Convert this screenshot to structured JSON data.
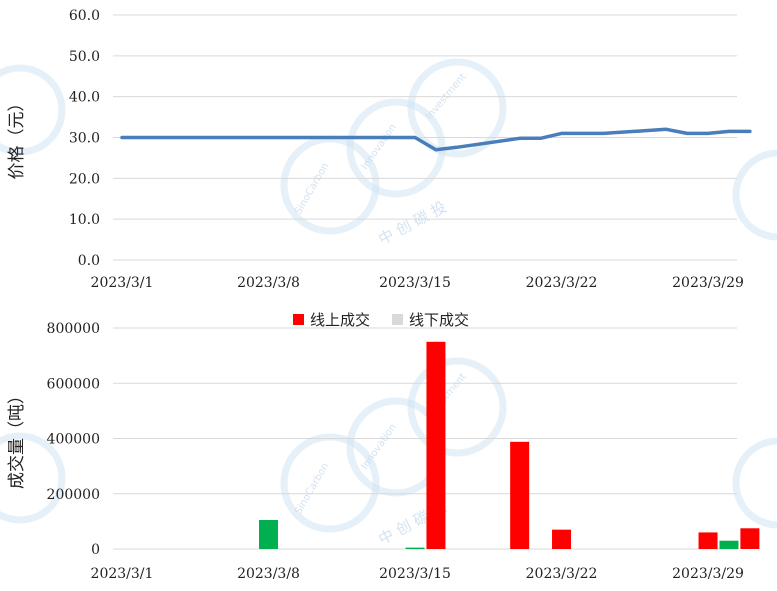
{
  "chart_data": [
    {
      "type": "line",
      "ylabel": "价格（元）",
      "ylim": [
        0,
        60
      ],
      "yticks": [
        "0.0",
        "10.0",
        "20.0",
        "30.0",
        "40.0",
        "50.0",
        "60.0"
      ],
      "x_tick_labels": [
        "2023/3/1",
        "2023/3/8",
        "2023/3/15",
        "2023/3/22",
        "2023/3/29"
      ],
      "grid": true,
      "color": "#4a7ebb",
      "series": [
        {
          "x": [
            "2023/3/1",
            "2023/3/2",
            "2023/3/3",
            "2023/3/6",
            "2023/3/7",
            "2023/3/8",
            "2023/3/9",
            "2023/3/10",
            "2023/3/13",
            "2023/3/14",
            "2023/3/15",
            "2023/3/16",
            "2023/3/17",
            "2023/3/20",
            "2023/3/21",
            "2023/3/22",
            "2023/3/23",
            "2023/3/24",
            "2023/3/27",
            "2023/3/28",
            "2023/3/29",
            "2023/3/30",
            "2023/3/31"
          ],
          "values": [
            30.0,
            30.0,
            30.0,
            30.0,
            30.0,
            30.0,
            30.0,
            30.0,
            30.0,
            30.0,
            30.0,
            27.0,
            27.6,
            29.8,
            29.8,
            31.0,
            31.0,
            31.0,
            32.0,
            31.0,
            31.0,
            31.5,
            31.5
          ]
        }
      ]
    },
    {
      "type": "bar",
      "ylabel": "成交量（吨）",
      "ylim": [
        0,
        800000
      ],
      "yticks": [
        "0",
        "200000",
        "400000",
        "600000",
        "800000"
      ],
      "x_tick_labels": [
        "2023/3/1",
        "2023/3/8",
        "2023/3/15",
        "2023/3/22",
        "2023/3/29"
      ],
      "grid": true,
      "legend_position": "top",
      "series": [
        {
          "name": "线上成交",
          "color": "#ff0000",
          "points": [
            {
              "date": "2023/3/16",
              "value": 750000
            },
            {
              "date": "2023/3/20",
              "value": 388000
            },
            {
              "date": "2023/3/22",
              "value": 70000
            },
            {
              "date": "2023/3/29",
              "value": 60000
            },
            {
              "date": "2023/3/31",
              "value": 75000
            }
          ]
        },
        {
          "name": "线下成交",
          "color": "#d9d9d9",
          "points": []
        }
      ],
      "other_bars": {
        "color": "#00b050",
        "points": [
          {
            "date": "2023/3/8",
            "value": 105000
          },
          {
            "date": "2023/3/15",
            "value": 5000
          },
          {
            "date": "2023/3/30",
            "value": 30000
          }
        ]
      }
    }
  ],
  "watermark": {
    "lines": [
      "SinoCarbon",
      "Innovation",
      "Investment",
      "中 创 碳 投"
    ]
  }
}
